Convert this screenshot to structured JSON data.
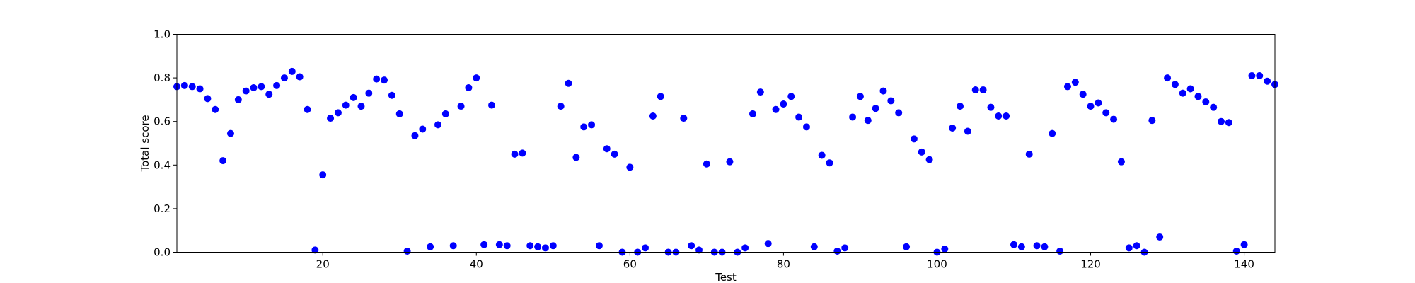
{
  "chart_data": {
    "type": "scatter",
    "xlabel": "Test",
    "ylabel": "Total score",
    "xlim": [
      1,
      144
    ],
    "ylim": [
      0,
      1
    ],
    "xticks": [
      20,
      40,
      60,
      80,
      100,
      120,
      140
    ],
    "xtick_labels": [
      "20",
      "40",
      "60",
      "80",
      "100",
      "120",
      "140"
    ],
    "yticks": [
      0,
      0.2,
      0.4,
      0.6,
      0.8,
      1.0
    ],
    "ytick_labels": [
      "0.0",
      "0.2",
      "0.4",
      "0.6",
      "0.8",
      "1.0"
    ],
    "grid": false,
    "marker_color": "#0000ff",
    "x": [
      1,
      2,
      3,
      4,
      5,
      6,
      7,
      8,
      9,
      10,
      11,
      12,
      13,
      14,
      15,
      16,
      17,
      18,
      19,
      20,
      21,
      22,
      23,
      24,
      25,
      26,
      27,
      28,
      29,
      30,
      31,
      32,
      33,
      34,
      35,
      36,
      37,
      38,
      39,
      40,
      41,
      42,
      43,
      44,
      45,
      46,
      47,
      48,
      49,
      50,
      51,
      52,
      53,
      54,
      55,
      56,
      57,
      58,
      59,
      60,
      61,
      62,
      63,
      64,
      65,
      66,
      67,
      68,
      69,
      70,
      71,
      72,
      73,
      74,
      75,
      76,
      77,
      78,
      79,
      80,
      81,
      82,
      83,
      84,
      85,
      86,
      87,
      88,
      89,
      90,
      91,
      92,
      93,
      94,
      95,
      96,
      97,
      98,
      99,
      100,
      101,
      102,
      103,
      104,
      105,
      106,
      107,
      108,
      109,
      110,
      111,
      112,
      113,
      114,
      115,
      116,
      117,
      118,
      119,
      120,
      121,
      122,
      123,
      124,
      125,
      126,
      127,
      128,
      129,
      130,
      131,
      132,
      133,
      134,
      135,
      136,
      137,
      138,
      139,
      140,
      141,
      142,
      143,
      144
    ],
    "y": [
      0.76,
      0.765,
      0.76,
      0.75,
      0.705,
      0.655,
      0.42,
      0.545,
      0.7,
      0.74,
      0.755,
      0.76,
      0.725,
      0.765,
      0.8,
      0.83,
      0.805,
      0.655,
      0.01,
      0.355,
      0.615,
      0.64,
      0.675,
      0.71,
      0.67,
      0.73,
      0.795,
      0.79,
      0.72,
      0.635,
      0.005,
      0.535,
      0.565,
      0.025,
      0.585,
      0.635,
      0.03,
      0.67,
      0.755,
      0.8,
      0.035,
      0.675,
      0.035,
      0.03,
      0.45,
      0.455,
      0.03,
      0.025,
      0.02,
      0.03,
      0.67,
      0.775,
      0.435,
      0.575,
      0.585,
      0.03,
      0.475,
      0.45,
      0.0,
      0.39,
      0.0,
      0.02,
      0.625,
      0.715,
      0.0,
      0.0,
      0.615,
      0.03,
      0.01,
      0.405,
      0.0,
      0.0,
      0.415,
      0.0,
      0.02,
      0.635,
      0.735,
      0.04,
      0.655,
      0.68,
      0.715,
      0.62,
      0.575,
      0.025,
      0.445,
      0.41,
      0.005,
      0.02,
      0.62,
      0.715,
      0.605,
      0.66,
      0.74,
      0.695,
      0.64,
      0.025,
      0.52,
      0.46,
      0.425,
      0.0,
      0.015,
      0.57,
      0.67,
      0.555,
      0.745,
      0.745,
      0.665,
      0.625,
      0.625,
      0.035,
      0.025,
      0.45,
      0.03,
      0.025,
      0.545,
      0.005,
      0.76,
      0.78,
      0.725,
      0.67,
      0.685,
      0.64,
      0.61,
      0.415,
      0.02,
      0.03,
      0.0,
      0.605,
      0.07,
      0.8,
      0.77,
      0.73,
      0.75,
      0.715,
      0.69,
      0.665,
      0.6,
      0.595,
      0.005,
      0.035,
      0.81,
      0.81,
      0.785,
      0.77
    ]
  }
}
